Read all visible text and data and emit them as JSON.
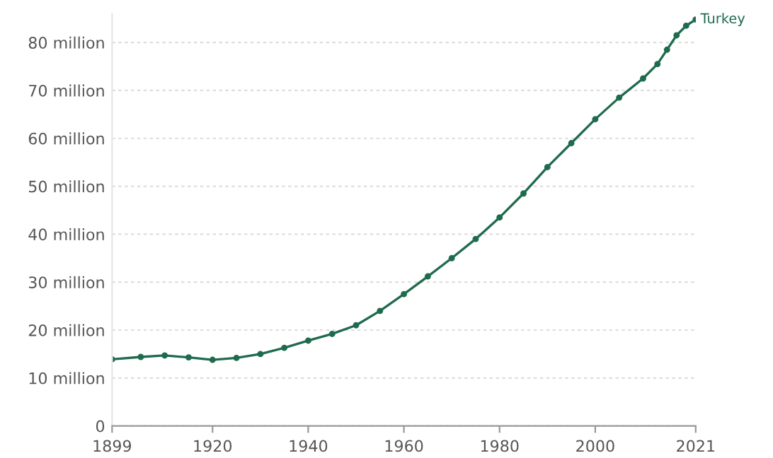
{
  "chart_data": {
    "type": "line",
    "xlim": [
      1899,
      2021
    ],
    "ylim": [
      0,
      86
    ],
    "xticks": [
      1899,
      1920,
      1940,
      1960,
      1980,
      2000,
      2021
    ],
    "yticks": [
      0,
      {
        "value": 10,
        "label": "10 million"
      },
      {
        "value": 20,
        "label": "20 million"
      },
      {
        "value": 30,
        "label": "30 million"
      },
      {
        "value": 40,
        "label": "40 million"
      },
      {
        "value": 50,
        "label": "50 million"
      },
      {
        "value": 60,
        "label": "60 million"
      },
      {
        "value": 70,
        "label": "70 million"
      },
      {
        "value": 80,
        "label": "80 million"
      }
    ],
    "grid": "y",
    "marker": "circle",
    "line_style": "solid",
    "series": [
      {
        "name": "Turkey",
        "color": "#1f6b4e",
        "x": [
          1899,
          1905,
          1910,
          1915,
          1920,
          1925,
          1930,
          1935,
          1940,
          1945,
          1950,
          1955,
          1960,
          1965,
          1970,
          1975,
          1980,
          1985,
          1990,
          1995,
          2000,
          2005,
          2010,
          2013,
          2015,
          2017,
          2019,
          2021
        ],
        "values": [
          13.9,
          14.4,
          14.7,
          14.3,
          13.8,
          14.2,
          15.0,
          16.3,
          17.8,
          19.2,
          21.0,
          24.0,
          27.5,
          31.2,
          35.0,
          39.0,
          43.5,
          48.5,
          54.0,
          59.0,
          64.0,
          68.5,
          72.5,
          75.5,
          78.5,
          81.5,
          83.5,
          84.8
        ]
      }
    ]
  }
}
